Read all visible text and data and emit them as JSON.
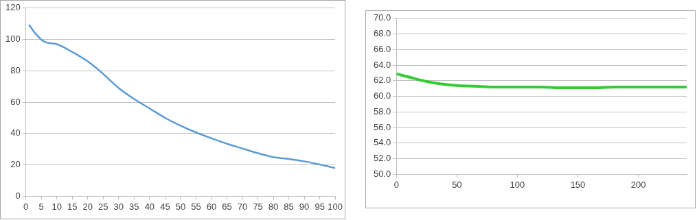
{
  "chart_data": [
    {
      "type": "line",
      "x": [
        1,
        3,
        6,
        10,
        15,
        20,
        25,
        30,
        35,
        40,
        45,
        50,
        55,
        60,
        65,
        70,
        75,
        80,
        85,
        90,
        95,
        100
      ],
      "series": [
        {
          "color": "#5b9bd5",
          "values": [
            109.4,
            104,
            98.5,
            97,
            92,
            86,
            78,
            69,
            62,
            56,
            50,
            45,
            40.7,
            37,
            33.5,
            30.5,
            27.5,
            25,
            23.8,
            22.3,
            20.3,
            18
          ]
        }
      ],
      "xlim": [
        0,
        100
      ],
      "xticks": [
        0,
        5,
        10,
        15,
        20,
        25,
        30,
        35,
        40,
        45,
        50,
        55,
        60,
        65,
        70,
        75,
        80,
        85,
        90,
        95,
        100
      ],
      "ylim": [
        0,
        120
      ],
      "yticks": [
        0,
        20,
        40,
        60,
        80,
        100,
        120
      ],
      "grid": "y",
      "legend": false,
      "marker": "none",
      "line_style": "solid"
    },
    {
      "type": "line",
      "x": [
        0,
        12,
        25,
        37,
        50,
        65,
        80,
        100,
        120,
        135,
        150,
        165,
        180,
        200,
        220,
        240
      ],
      "series": [
        {
          "color": "#33cc33",
          "values": [
            62.9,
            62.4,
            61.9,
            61.6,
            61.4,
            61.3,
            61.2,
            61.2,
            61.2,
            61.1,
            61.1,
            61.1,
            61.2,
            61.2,
            61.2,
            61.2
          ]
        }
      ],
      "xlim": [
        0,
        240
      ],
      "xticks": [
        0,
        50,
        100,
        150,
        200
      ],
      "ylim": [
        50,
        70
      ],
      "yticks": [
        {
          "value": 50,
          "label": "50.0"
        },
        {
          "value": 52,
          "label": "52.0"
        },
        {
          "value": 54,
          "label": "54.0"
        },
        {
          "value": 56,
          "label": "56.0"
        },
        {
          "value": 58,
          "label": "58.0"
        },
        {
          "value": 60,
          "label": "60.0"
        },
        {
          "value": 62,
          "label": "62.0"
        },
        {
          "value": 64,
          "label": "64.0"
        },
        {
          "value": 66,
          "label": "66.0"
        },
        {
          "value": 68,
          "label": "68.0"
        },
        {
          "value": 70,
          "label": "70.0"
        }
      ],
      "grid": "y",
      "legend": false,
      "marker": "none",
      "line_style": "solid"
    }
  ]
}
